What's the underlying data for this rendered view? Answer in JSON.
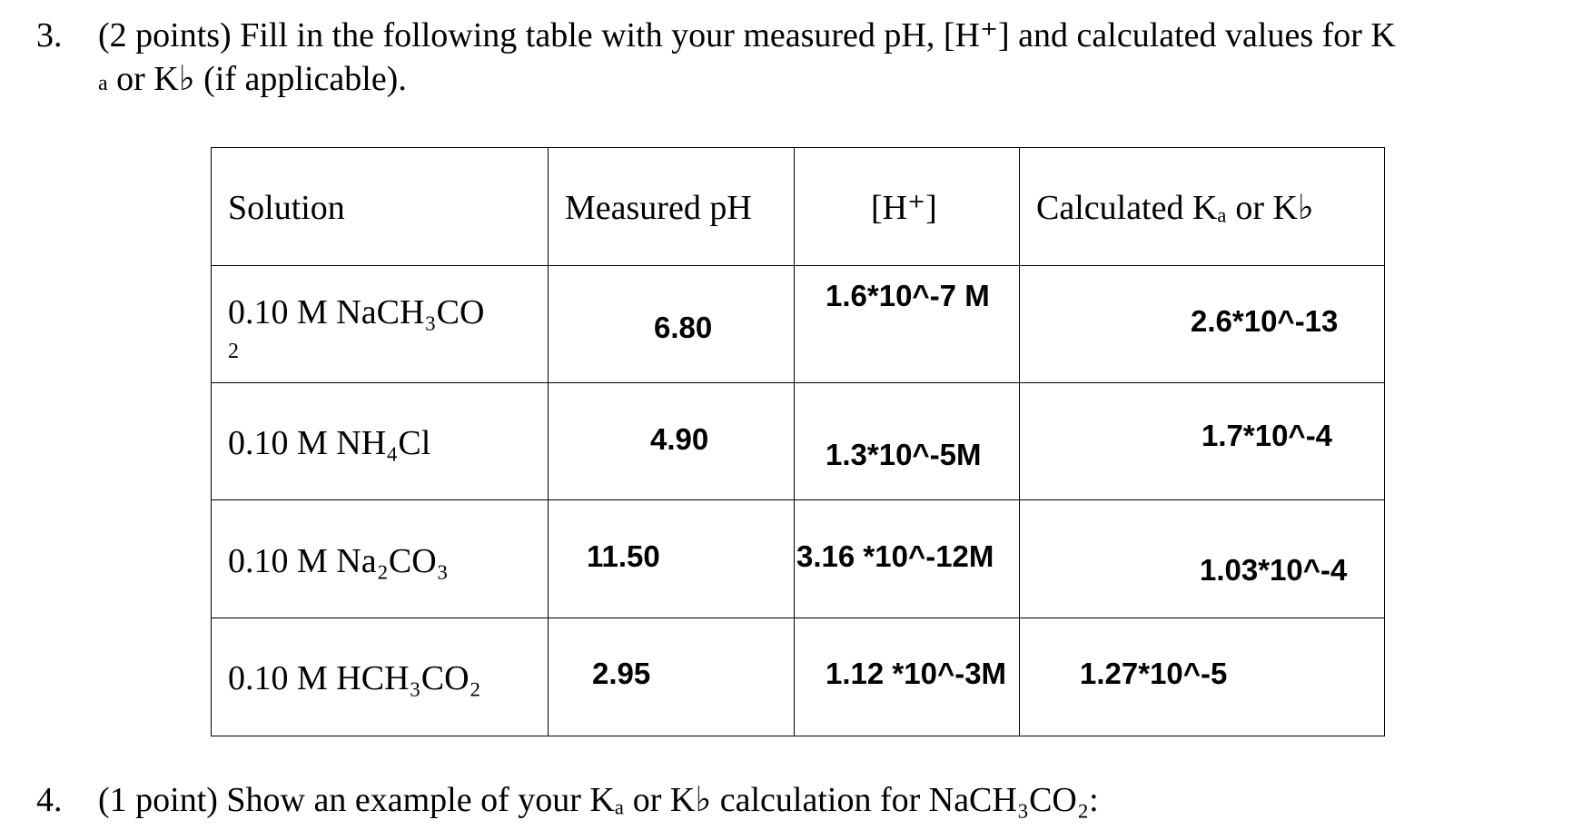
{
  "question3": {
    "number": "3.",
    "line1": "(2 points) Fill in the following table with your measured pH, [H⁺] and calculated values for K",
    "line2_sub": "a",
    "line2_rest": " or K♭ (if applicable)."
  },
  "table": {
    "headers": [
      "Solution",
      "Measured pH",
      "[H⁺]",
      "Calculated Kₐ or K♭"
    ],
    "rows": [
      {
        "solution": "0.10 M NaCH₃CO",
        "solution_wrap": "2",
        "ph": "6.80",
        "h": "1.6*10^-7 M",
        "k": "2.6*10^-13"
      },
      {
        "solution": "0.10 M NH₄Cl",
        "ph": "4.90",
        "h": "1.3*10^-5M",
        "k": "1.7*10^-4"
      },
      {
        "solution": "0.10 M Na₂CO₃",
        "ph": "11.50",
        "h": "3.16 *10^-12M",
        "k": "1.03*10^-4"
      },
      {
        "solution": "0.10 M HCH₃CO₂",
        "ph": "2.95",
        "h": "1.12 *10^-3M",
        "k": "1.27*10^-5"
      }
    ]
  },
  "question4": {
    "number": "4.",
    "text": "(1 point) Show an example of your Kₐ or K♭ calculation for NaCH₃CO₂:"
  }
}
